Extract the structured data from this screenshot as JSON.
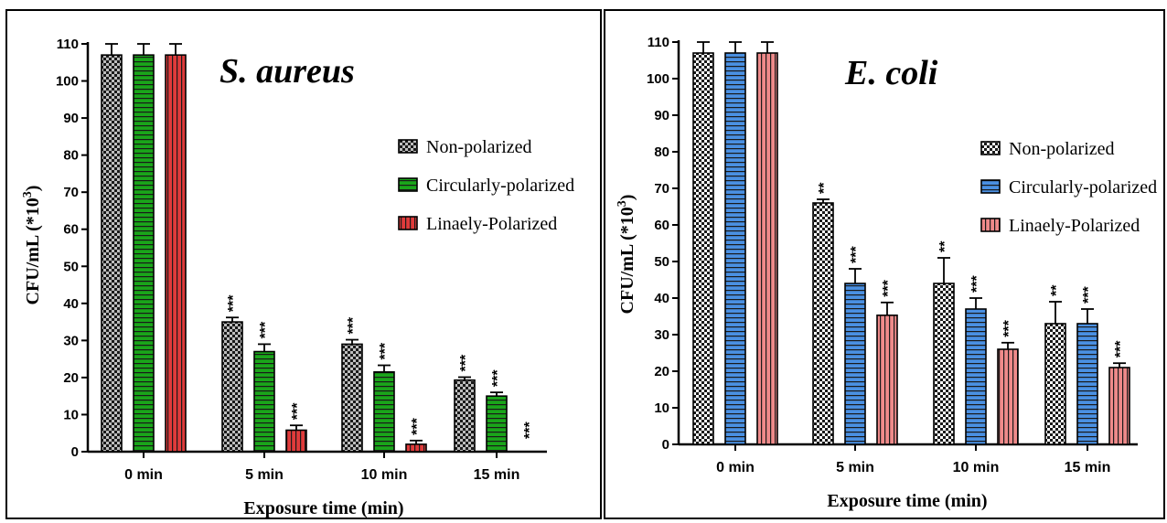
{
  "chart_data": [
    {
      "type": "bar",
      "title": "S. aureus",
      "xlabel": "Exposure time (min)",
      "ylabel": "CFU/mL (*10³)",
      "ylim": [
        0,
        110
      ],
      "yticks": [
        0,
        10,
        20,
        30,
        40,
        50,
        60,
        70,
        80,
        90,
        100,
        110
      ],
      "categories": [
        "0 min",
        "5 min",
        "10 min",
        "15 min"
      ],
      "legend_position": "right",
      "series": [
        {
          "name": "Non-polarized",
          "color": "#bdbdbd",
          "pattern": "checker",
          "values": [
            107,
            35,
            29,
            19.3
          ],
          "errors": [
            3,
            1.2,
            1.2,
            0.8
          ],
          "significance": [
            "",
            "***",
            "***",
            "***"
          ]
        },
        {
          "name": "Circularly-polarized",
          "color": "#1aa51a",
          "pattern": "hstripes",
          "values": [
            107,
            27,
            21.5,
            15
          ],
          "errors": [
            3,
            2,
            1.8,
            1
          ],
          "significance": [
            "",
            "***",
            "***",
            "***"
          ]
        },
        {
          "name": "Linaely-Polarized",
          "color": "#e03b3b",
          "pattern": "vstripes",
          "values": [
            107,
            5.8,
            2,
            0
          ],
          "errors": [
            3,
            1.3,
            1,
            0
          ],
          "significance": [
            "",
            "***",
            "***",
            "***"
          ]
        }
      ]
    },
    {
      "type": "bar",
      "title": "E. coli",
      "xlabel": "Exposure time (min)",
      "ylabel": "CFU/mL (*10³)",
      "ylim": [
        0,
        110
      ],
      "yticks": [
        0,
        10,
        20,
        30,
        40,
        50,
        60,
        70,
        80,
        90,
        100,
        110
      ],
      "categories": [
        "0 min",
        "5 min",
        "10 min",
        "15 min"
      ],
      "legend_position": "right",
      "series": [
        {
          "name": "Non-polarized",
          "color": "#ffffff",
          "pattern": "checker",
          "values": [
            107,
            66,
            44,
            33
          ],
          "errors": [
            3,
            1,
            7,
            6
          ],
          "significance": [
            "",
            "**",
            "**",
            "**"
          ]
        },
        {
          "name": "Circularly-polarized",
          "color": "#4a90e2",
          "pattern": "hstripes",
          "values": [
            107,
            44,
            37,
            33
          ],
          "errors": [
            3,
            4,
            3,
            4
          ],
          "significance": [
            "",
            "***",
            "***",
            "***"
          ]
        },
        {
          "name": "Linaely-Polarized",
          "color": "#ef8a8a",
          "pattern": "vstripes",
          "values": [
            107,
            35.3,
            26,
            21
          ],
          "errors": [
            3,
            3.5,
            1.8,
            1.2
          ],
          "significance": [
            "",
            "***",
            "***",
            "***"
          ]
        }
      ]
    }
  ]
}
